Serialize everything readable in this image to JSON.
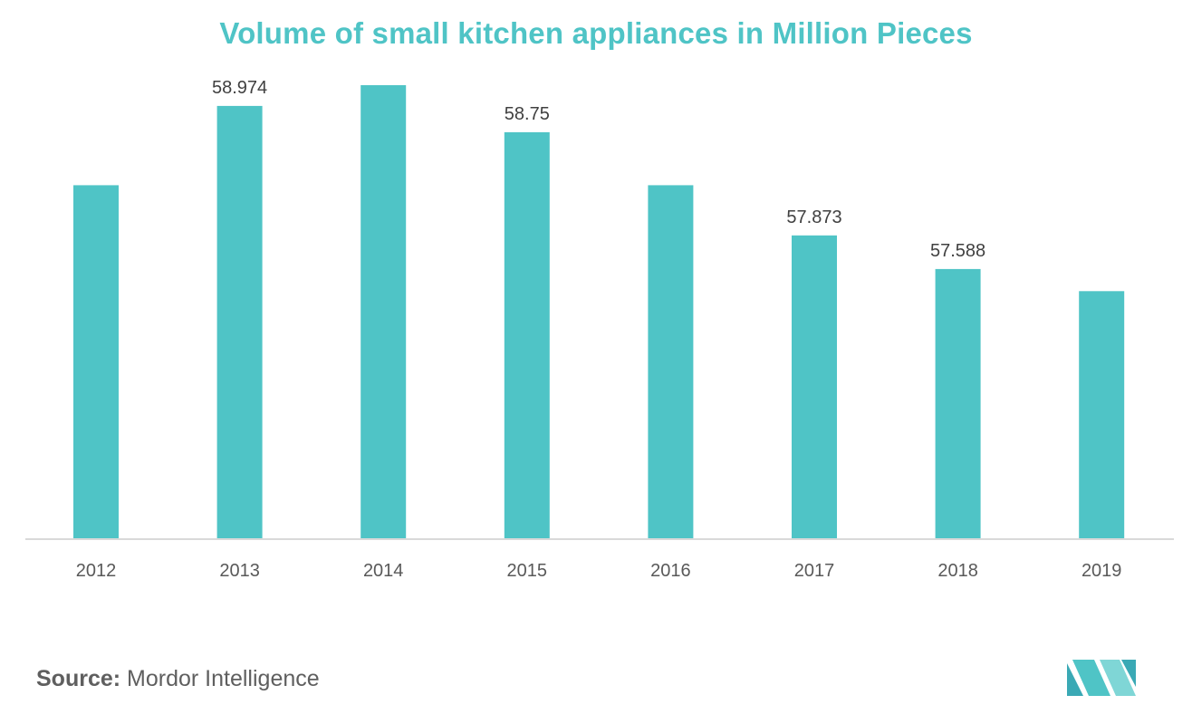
{
  "chart_data": {
    "type": "bar",
    "title": "Volume of small kitchen appliances in Million Pieces",
    "xlabel": "",
    "ylabel": "",
    "categories": [
      "2012",
      "2013",
      "2014",
      "2015",
      "2016",
      "2017",
      "2018",
      "2019"
    ],
    "values": [
      58.3,
      58.974,
      59.15,
      58.75,
      58.3,
      57.873,
      57.588,
      57.4
    ],
    "data_labels": [
      "",
      "58.974",
      "",
      "58.75",
      "",
      "57.873",
      "57.588",
      ""
    ],
    "grid": false,
    "legend": "none",
    "bar_color": "#4fc4c6"
  },
  "footer": {
    "source_label": "Source:",
    "source_name": "Mordor Intelligence"
  },
  "colors": {
    "title": "#4fc4c6",
    "axis": "#d9d9d9",
    "tick_text": "#595959",
    "label_text": "#404040",
    "logo": "#4fc4c6"
  }
}
